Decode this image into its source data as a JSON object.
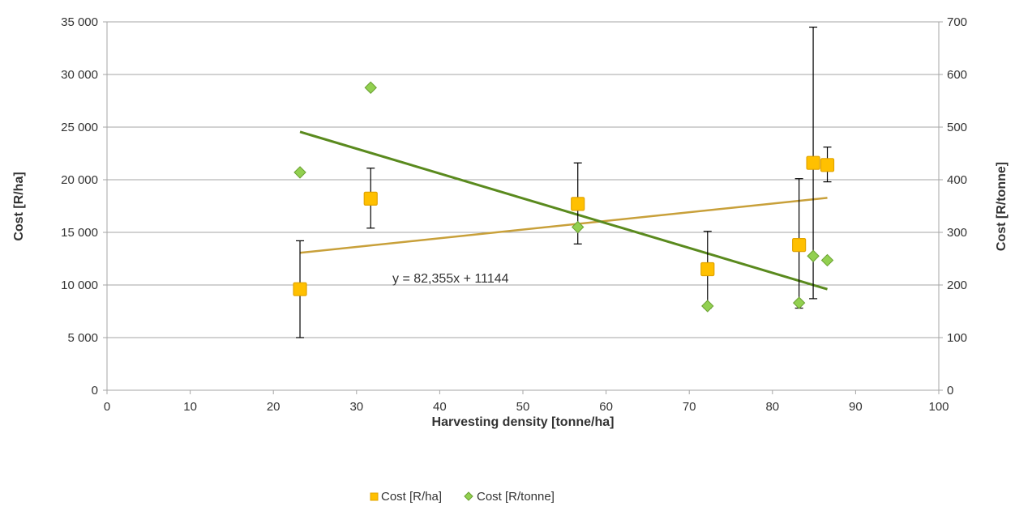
{
  "chart_data": {
    "type": "scatter",
    "xlabel": "Harvesting density [tonne/ha]",
    "ylabel": "Cost [R/ha]",
    "y2label": "Cost [R/tonne]",
    "xlim": [
      0,
      100
    ],
    "ylim": [
      0,
      35000
    ],
    "y2lim": [
      0,
      700
    ],
    "xticks": [
      0,
      10,
      20,
      30,
      40,
      50,
      60,
      70,
      80,
      90,
      100
    ],
    "xtick_labels": [
      "0",
      "10",
      "20",
      "30",
      "40",
      "50",
      "60",
      "70",
      "80",
      "90",
      "100"
    ],
    "yticks": [
      0,
      5000,
      10000,
      15000,
      20000,
      25000,
      30000,
      35000
    ],
    "ytick_labels": [
      "0",
      "5 000",
      "10 000",
      "15 000",
      "20 000",
      "25 000",
      "30 000",
      "35 000"
    ],
    "y2ticks": [
      0,
      100,
      200,
      300,
      400,
      500,
      600,
      700
    ],
    "y2tick_labels": [
      "0",
      "100",
      "200",
      "300",
      "400",
      "500",
      "600",
      "700"
    ],
    "grid": "horizontal",
    "legend_position": "bottom",
    "colors": {
      "cost_ha_fill": "#ffc000",
      "cost_ha_stroke": "#e2a400",
      "cost_ha_trend": "#c8a03a",
      "cost_tonne_fill": "#92d050",
      "cost_tonne_stroke": "#6aa031",
      "cost_tonne_trend": "#5a8a1e",
      "grid": "#a6a6a6",
      "error_bar": "#000000"
    },
    "series": [
      {
        "name": "Cost [R/ha]",
        "axis": "left",
        "marker": "square",
        "x": [
          23.2,
          31.7,
          56.6,
          72.2,
          83.2,
          84.9,
          86.6
        ],
        "y": [
          9600,
          18200,
          17700,
          11500,
          13800,
          21600,
          21400
        ],
        "error_low": [
          5000,
          15400,
          13900,
          7800,
          7800,
          8700,
          19800
        ],
        "error_high": [
          14200,
          21100,
          21600,
          15100,
          20100,
          34500,
          23100
        ]
      },
      {
        "name": "Cost [R/tonne]",
        "axis": "right",
        "marker": "diamond",
        "x": [
          23.2,
          31.7,
          56.6,
          72.2,
          83.2,
          84.9,
          86.6
        ],
        "y": [
          414,
          575,
          310,
          160,
          166,
          255,
          247
        ]
      }
    ],
    "trendlines": [
      {
        "series": "Cost [R/ha]",
        "axis": "left",
        "x": [
          23.2,
          86.6
        ],
        "y": [
          13055,
          18276
        ],
        "label": "y = 82,355x + 11144"
      },
      {
        "series": "Cost [R/tonne]",
        "axis": "right",
        "x": [
          23.2,
          86.6
        ],
        "y": [
          491,
          192
        ]
      }
    ]
  }
}
